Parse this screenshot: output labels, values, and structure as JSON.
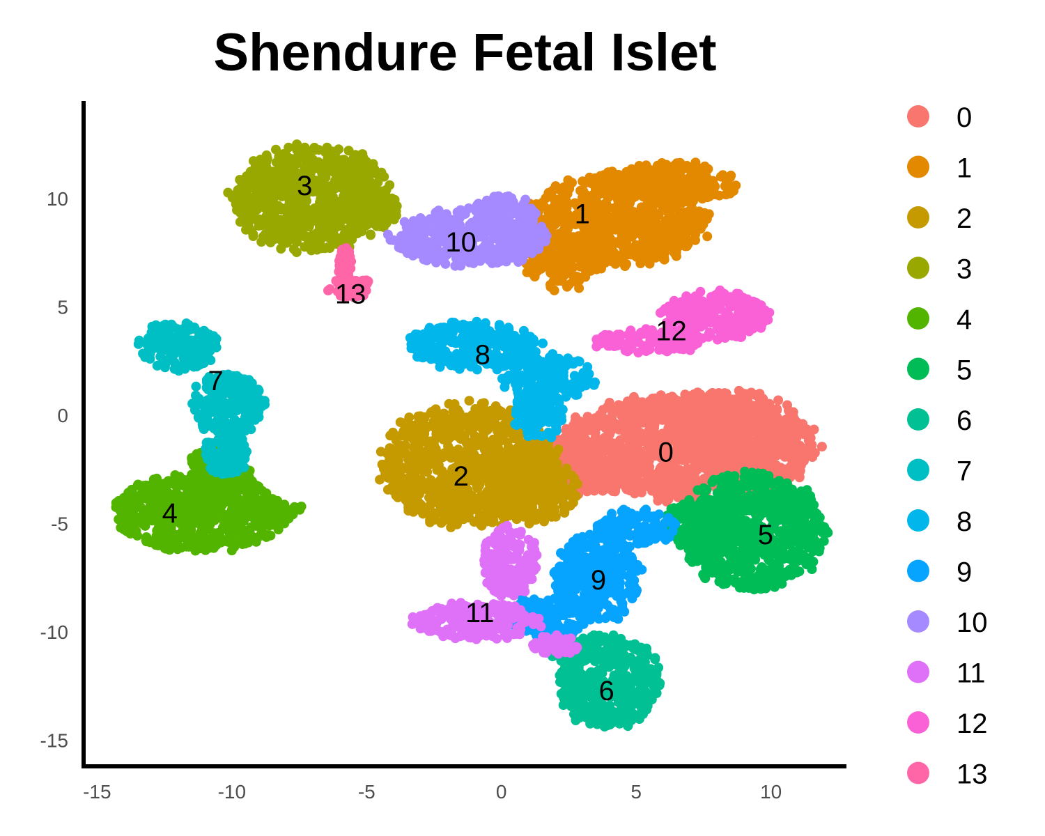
{
  "chart_data": {
    "type": "scatter",
    "title": "Shendure Fetal Islet",
    "xlabel": "",
    "ylabel": "",
    "xlim": [
      -15.5,
      12.8
    ],
    "ylim": [
      -16.2,
      14.5
    ],
    "x_ticks": [
      -15,
      -10,
      -5,
      0,
      5,
      10
    ],
    "y_ticks": [
      10,
      5,
      0,
      -5,
      -10,
      -15
    ],
    "x_tick_labels": [
      "-15",
      "-10",
      "-5",
      "0",
      "5",
      "10"
    ],
    "y_tick_labels": [
      "10",
      "5",
      "0",
      "-5",
      "-10",
      "-15"
    ],
    "grid": false,
    "legend_position": "right",
    "series": [
      {
        "name": "0",
        "color": "#F8766D",
        "label_at": [
          6.1,
          -1.8
        ],
        "regions": [
          {
            "center": [
              6.8,
              -1.5
            ],
            "radii": [
              5.2,
              2.6
            ]
          },
          {
            "center": [
              2.8,
              -2.3
            ],
            "radii": [
              2.3,
              1.5
            ]
          },
          {
            "center": [
              8.5,
              -0.3
            ],
            "radii": [
              2.5,
              1.6
            ]
          }
        ]
      },
      {
        "name": "1",
        "color": "#E38900",
        "label_at": [
          3.0,
          9.2
        ],
        "regions": [
          {
            "center": [
              4.3,
              9.0
            ],
            "radii": [
              3.6,
              2.3
            ]
          },
          {
            "center": [
              6.5,
              10.8
            ],
            "radii": [
              2.6,
              1.0
            ]
          },
          {
            "center": [
              2.2,
              7.0
            ],
            "radii": [
              1.4,
              1.3
            ]
          }
        ]
      },
      {
        "name": "2",
        "color": "#C49A00",
        "label_at": [
          -1.5,
          -2.9
        ],
        "regions": [
          {
            "center": [
              -1.2,
              -2.3
            ],
            "radii": [
              3.5,
              3.0
            ]
          },
          {
            "center": [
              1.2,
              -3.5
            ],
            "radii": [
              1.8,
              1.6
            ]
          }
        ]
      },
      {
        "name": "3",
        "color": "#99A800",
        "label_at": [
          -7.3,
          10.5
        ],
        "regions": [
          {
            "center": [
              -7.0,
              10.0
            ],
            "radii": [
              3.2,
              2.6
            ]
          },
          {
            "center": [
              -5.0,
              9.5
            ],
            "radii": [
              1.3,
              1.0
            ]
          }
        ]
      },
      {
        "name": "4",
        "color": "#53B400",
        "label_at": [
          -12.3,
          -4.6
        ],
        "regions": [
          {
            "center": [
              -11.2,
              -4.5
            ],
            "radii": [
              3.4,
              1.9
            ]
          },
          {
            "center": [
              -8.7,
              -4.4
            ],
            "radii": [
              1.4,
              0.5
            ]
          },
          {
            "center": [
              -10.5,
              -2.7
            ],
            "radii": [
              1.3,
              1.3
            ]
          }
        ]
      },
      {
        "name": "5",
        "color": "#00BC56",
        "label_at": [
          9.8,
          -5.6
        ],
        "regions": [
          {
            "center": [
              9.3,
              -5.4
            ],
            "radii": [
              2.9,
              2.9
            ]
          },
          {
            "center": [
              7.5,
              -5.0
            ],
            "radii": [
              1.6,
              1.2
            ]
          }
        ]
      },
      {
        "name": "6",
        "color": "#00C094",
        "label_at": [
          3.9,
          -12.8
        ],
        "regions": [
          {
            "center": [
              4.0,
              -12.3
            ],
            "radii": [
              2.0,
              2.3
            ]
          },
          {
            "center": [
              3.0,
              -10.8
            ],
            "radii": [
              1.5,
              0.7
            ]
          }
        ]
      },
      {
        "name": "7",
        "color": "#00BFC4",
        "label_at": [
          -10.6,
          1.5
        ],
        "regions": [
          {
            "center": [
              -12.0,
              3.2
            ],
            "radii": [
              1.6,
              1.2
            ]
          },
          {
            "center": [
              -10.2,
              0.5
            ],
            "radii": [
              1.5,
              1.5
            ]
          },
          {
            "center": [
              -10.2,
              -1.8
            ],
            "radii": [
              0.9,
              1.1
            ]
          }
        ]
      },
      {
        "name": "8",
        "color": "#00B6EB",
        "label_at": [
          -0.7,
          2.7
        ],
        "regions": [
          {
            "center": [
              -1.0,
              3.2
            ],
            "radii": [
              2.8,
              1.2
            ]
          },
          {
            "center": [
              1.7,
              1.7
            ],
            "radii": [
              1.8,
              1.2
            ]
          },
          {
            "center": [
              1.4,
              0.0
            ],
            "radii": [
              1.0,
              1.2
            ]
          }
        ]
      },
      {
        "name": "9",
        "color": "#06A4FF",
        "label_at": [
          3.6,
          -7.7
        ],
        "regions": [
          {
            "center": [
              3.6,
              -7.5
            ],
            "radii": [
              1.7,
              2.2
            ]
          },
          {
            "center": [
              1.7,
              -9.3
            ],
            "radii": [
              1.8,
              1.0
            ]
          },
          {
            "center": [
              5.0,
              -5.2
            ],
            "radii": [
              1.6,
              0.9
            ]
          }
        ]
      },
      {
        "name": "10",
        "color": "#A58AFF",
        "label_at": [
          -1.5,
          7.9
        ],
        "regions": [
          {
            "center": [
              -1.2,
              8.2
            ],
            "radii": [
              3.1,
              1.4
            ]
          },
          {
            "center": [
              0.1,
              9.3
            ],
            "radii": [
              1.3,
              0.9
            ]
          }
        ]
      },
      {
        "name": "11",
        "color": "#DF70F8",
        "label_at": [
          -0.8,
          -9.2
        ],
        "regions": [
          {
            "center": [
              -0.9,
              -9.5
            ],
            "radii": [
              2.6,
              0.9
            ]
          },
          {
            "center": [
              0.3,
              -6.8
            ],
            "radii": [
              1.1,
              1.8
            ]
          },
          {
            "center": [
              2.0,
              -10.6
            ],
            "radii": [
              1.0,
              0.5
            ]
          }
        ]
      },
      {
        "name": "12",
        "color": "#FB61D7",
        "label_at": [
          6.3,
          3.8
        ],
        "regions": [
          {
            "center": [
              7.9,
              4.6
            ],
            "radii": [
              2.2,
              1.2
            ]
          },
          {
            "center": [
              5.5,
              3.4
            ],
            "radii": [
              2.2,
              0.6
            ]
          }
        ]
      },
      {
        "name": "13",
        "color": "#FF66A8",
        "label_at": [
          -5.6,
          5.5
        ],
        "regions": [
          {
            "center": [
              -5.6,
              5.9
            ],
            "radii": [
              0.9,
              0.5
            ]
          },
          {
            "center": [
              -5.8,
              7.0
            ],
            "radii": [
              0.3,
              0.8
            ]
          }
        ]
      }
    ]
  }
}
